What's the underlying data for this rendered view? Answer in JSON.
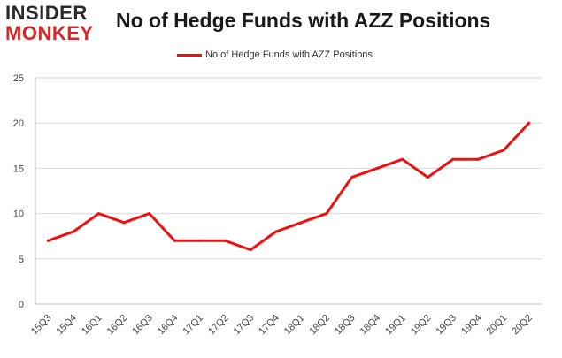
{
  "logo": {
    "line1": "INSIDER",
    "line2": "MONKEY"
  },
  "colors": {
    "series": "#ee1111",
    "grid": "#d9d9d9",
    "logo_red": "#d4292c"
  },
  "chart_data": {
    "type": "line",
    "title": "No of Hedge Funds with AZZ Positions",
    "xlabel": "",
    "ylabel": "",
    "ylim": [
      0,
      25
    ],
    "yticks": [
      0,
      5,
      10,
      15,
      20,
      25
    ],
    "grid": true,
    "legend_position": "top-center",
    "categories": [
      "15Q3",
      "15Q4",
      "16Q1",
      "16Q2",
      "16Q3",
      "16Q4",
      "17Q1",
      "17Q2",
      "17Q3",
      "17Q4",
      "18Q1",
      "18Q2",
      "18Q3",
      "18Q4",
      "19Q1",
      "19Q2",
      "19Q3",
      "19Q4",
      "20Q1",
      "20Q2"
    ],
    "series": [
      {
        "name": "No of Hedge Funds with AZZ Positions",
        "values": [
          7,
          8,
          10,
          9,
          10,
          7,
          7,
          7,
          6,
          8,
          9,
          10,
          14,
          15,
          16,
          14,
          16,
          16,
          17,
          20
        ]
      }
    ]
  }
}
